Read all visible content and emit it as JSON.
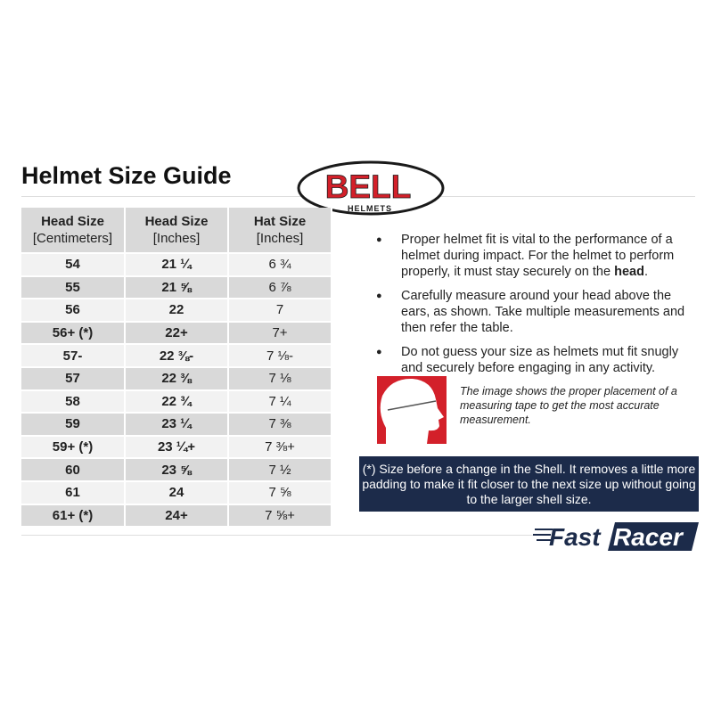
{
  "title": "Helmet Size Guide",
  "logo": {
    "brand": "BELL",
    "sub": "HELMETS"
  },
  "table": {
    "headers": [
      {
        "main": "Head Size",
        "sub": "[Centimeters]"
      },
      {
        "main": "Head Size",
        "sub": "[Inches]"
      },
      {
        "main": "Hat Size",
        "sub": "[Inches]"
      }
    ],
    "rows": [
      [
        "54",
        "21 ¼",
        "6 ¾"
      ],
      [
        "55",
        "21 ⅝",
        "6 ⅞"
      ],
      [
        "56",
        "22",
        "7"
      ],
      [
        "56+ (*)",
        "22+",
        "7+"
      ],
      [
        "57-",
        "22 ⅜-",
        "7 ⅛-"
      ],
      [
        "57",
        "22 ⅜",
        "7 ⅛"
      ],
      [
        "58",
        "22 ¾",
        "7 ¼"
      ],
      [
        "59",
        "23 ¼",
        "7 ⅜"
      ],
      [
        "59+ (*)",
        "23 ¼+",
        "7 ⅜+"
      ],
      [
        "60",
        "23 ⅝",
        "7 ½"
      ],
      [
        "61",
        "24",
        "7 ⅝"
      ],
      [
        "61+ (*)",
        "24+",
        "7 ⅝+"
      ]
    ]
  },
  "bullets": [
    {
      "text": "Proper helmet fit is vital to the performance of a helmet during impact. For the helmet to perform properly, it must stay securely on the ",
      "bold": "head",
      "end": "."
    },
    {
      "text": "Carefully measure around your head above the ears, as shown. Take multiple measurements and then refer the table."
    },
    {
      "text": "Do not guess your size as helmets mut fit snugly and securely before engaging in any activity."
    }
  ],
  "caption": "The image shows the proper placement of a measuring tape to get the most accurate measurement.",
  "note": "(*) Size before a change in the Shell. It removes a little more padding to make it fit closer to the next size up without going to the larger shell size.",
  "footer_logo": "FastRacer",
  "colors": {
    "red": "#d3202a",
    "navy": "#1c2b4a"
  }
}
